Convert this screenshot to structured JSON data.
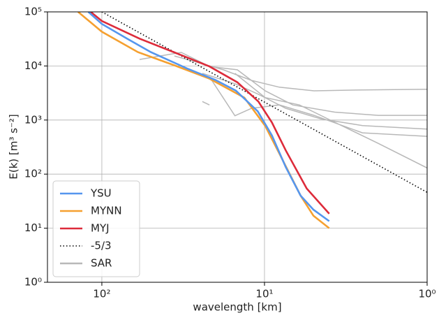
{
  "chart_data": {
    "type": "line",
    "xlabel": "wavelength [km]",
    "ylabel": "E(k) [m³ s⁻²]",
    "xscale": "log",
    "yscale": "log",
    "grid": true,
    "legend": "lower left",
    "xlim": [
      216,
      1
    ],
    "ylim": [
      1,
      100000
    ],
    "xticks": [
      {
        "value": 100,
        "label": "10²"
      },
      {
        "value": 10,
        "label": "10¹"
      },
      {
        "value": 1,
        "label": "10⁰"
      }
    ],
    "yticks": [
      {
        "value": 1,
        "label": "10⁰"
      },
      {
        "value": 10,
        "label": "10¹"
      },
      {
        "value": 100,
        "label": "10²"
      },
      {
        "value": 1000,
        "label": "10³"
      },
      {
        "value": 10000,
        "label": "10⁴"
      },
      {
        "value": 100000,
        "label": "10⁵"
      }
    ],
    "series": [
      {
        "name": "YSU",
        "color": "#5596ee",
        "linestyle": "solid",
        "x": [
          121,
          100,
          70,
          50,
          30,
          20,
          15,
          11,
          9,
          7.4,
          6,
          5,
          4
        ],
        "values": [
          100000,
          60000,
          32000,
          18000,
          9000,
          5500,
          3500,
          1450,
          520,
          135,
          40,
          22,
          13.5
        ]
      },
      {
        "name": "MYNN",
        "color": "#f5a030",
        "linestyle": "solid",
        "x": [
          140,
          100,
          60,
          35,
          22,
          13.3,
          9.9,
          8.1,
          6,
          5,
          4
        ],
        "values": [
          100000,
          43000,
          18000,
          10000,
          5900,
          2600,
          780,
          240,
          40,
          17,
          10
        ]
      },
      {
        "name": "MYJ",
        "color": "#dd2b3a",
        "linestyle": "solid",
        "x": [
          117,
          100,
          58.6,
          35.8,
          21.8,
          14.7,
          10.9,
          9,
          7.4,
          5.5,
          4
        ],
        "values": [
          100000,
          68000,
          32000,
          17800,
          9800,
          5000,
          2200,
          900,
          275,
          54,
          18.5
        ]
      },
      {
        "name": "-5/3",
        "color": "#000000",
        "linestyle": "dotted",
        "x": [
          100,
          1
        ],
        "values": [
          100000,
          46
        ]
      },
      {
        "name": "SAR",
        "color": "#b8b8b8",
        "linestyle": "solid",
        "x": [
          58.6,
          32.5,
          21.8,
          14.7,
          9.9,
          6.7,
          3.7,
          2.0,
          1,
          null,
          35.8,
          17.9,
          12,
          8.1,
          4.96,
          2.5,
          1,
          null,
          24.1,
          15.2,
          10.9,
          7.4,
          4.5,
          2.5,
          1,
          null,
          21.8,
          15.2,
          12,
          8.1,
          4.96,
          2.5,
          1,
          null,
          15.2,
          9.9,
          6.1,
          3.7,
          2.0,
          1,
          null,
          24.1,
          21.8
        ],
        "values": [
          13200,
          17800,
          9800,
          8500,
          3470,
          1900,
          1400,
          1220,
          1220,
          null,
          15300,
          8500,
          5400,
          4050,
          3470,
          3600,
          3700,
          null,
          7300,
          4700,
          3000,
          1650,
          1050,
          790,
          680,
          null,
          6300,
          1200,
          1650,
          1900,
          1220,
          580,
          500,
          null,
          7300,
          2600,
          1900,
          910,
          370,
          130,
          null,
          2200,
          1900
        ]
      }
    ]
  }
}
